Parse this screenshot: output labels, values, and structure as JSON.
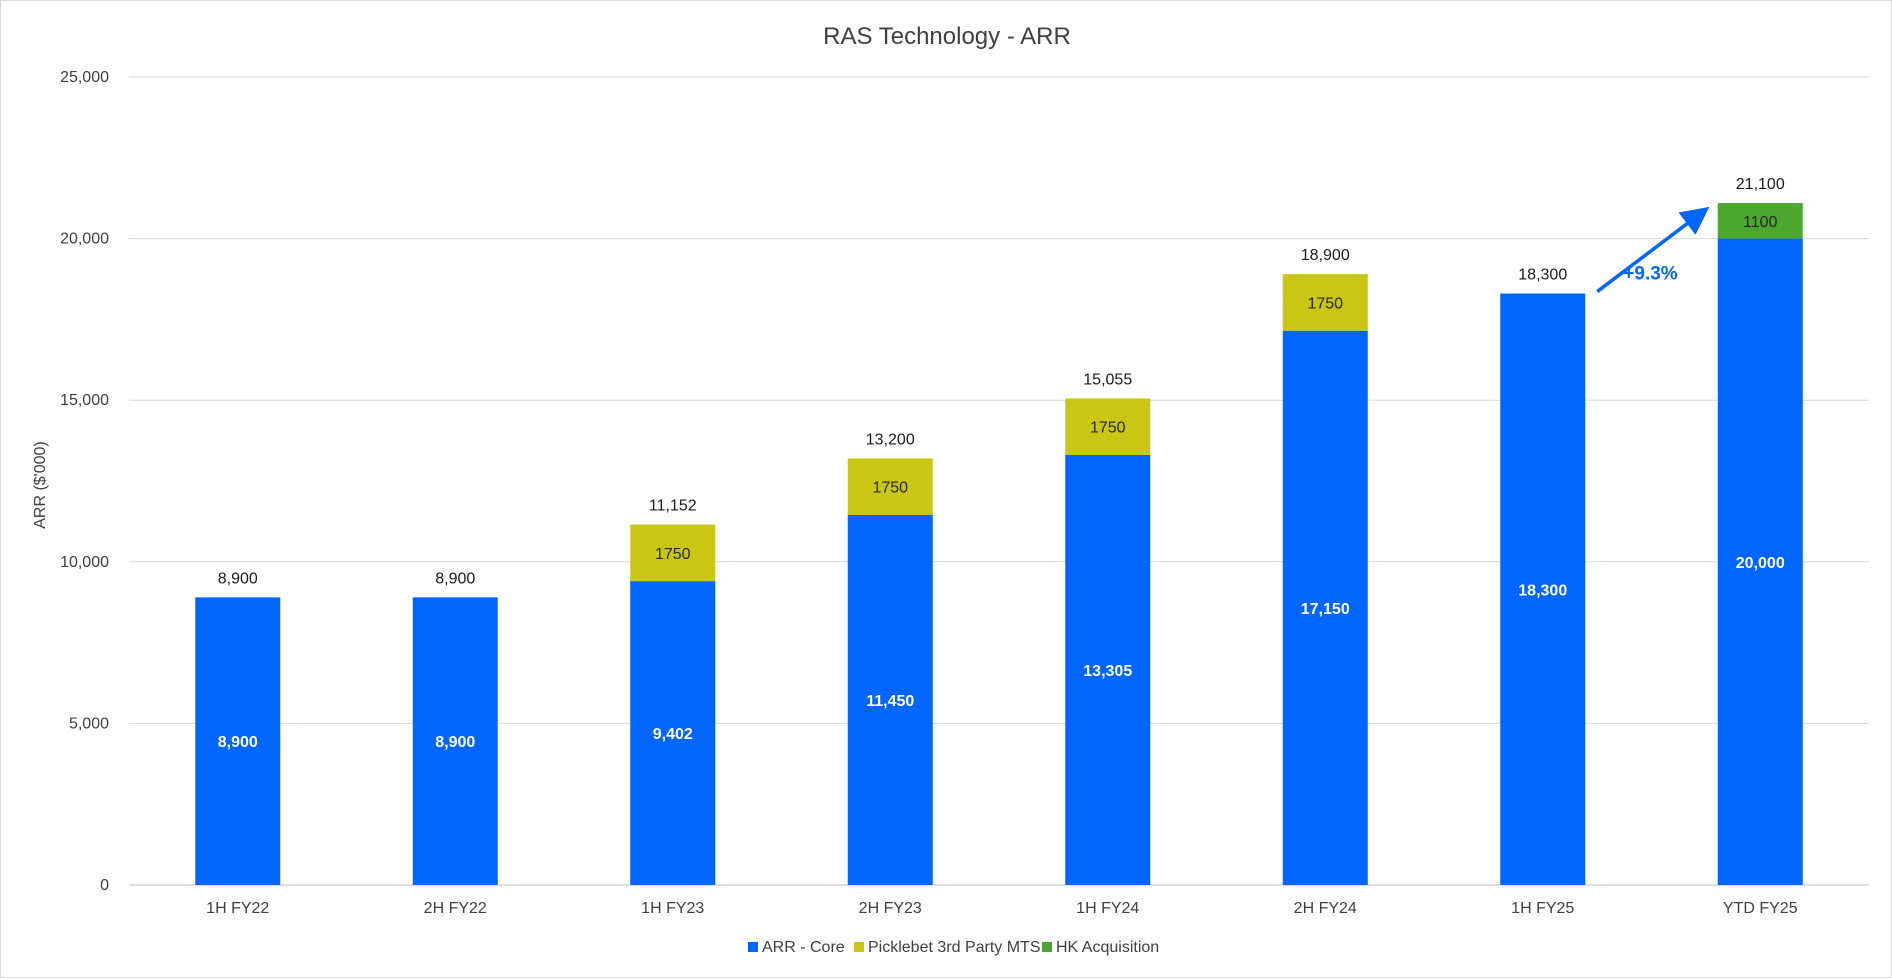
{
  "chart_data": {
    "type": "bar",
    "stacked": true,
    "title": "RAS Technology - ARR",
    "xlabel": "",
    "ylabel": "ARR ($'000)",
    "ylim": [
      0,
      25000
    ],
    "yticks": [
      0,
      5000,
      10000,
      15000,
      20000,
      25000
    ],
    "ytick_labels": [
      "0",
      "5,000",
      "10,000",
      "15,000",
      "20,000",
      "25,000"
    ],
    "grid": true,
    "legend_position": "bottom",
    "categories": [
      "1H FY22",
      "2H FY22",
      "1H FY23",
      "2H FY23",
      "1H FY24",
      "2H FY24",
      "1H FY25",
      "YTD FY25"
    ],
    "series": [
      {
        "name": "ARR - Core",
        "color": "#0066ff",
        "label_color": "#ffffff",
        "values": [
          8900,
          8900,
          9402,
          11450,
          13305,
          17150,
          18300,
          20000
        ],
        "labels": [
          "8,900",
          "8,900",
          "9,402",
          "11,450",
          "13,305",
          "17,150",
          "18,300",
          "20,000"
        ]
      },
      {
        "name": "Picklebet 3rd Party MTS",
        "color": "#c9c714",
        "label_color": "#262626",
        "values": [
          null,
          null,
          1750,
          1750,
          1750,
          1750,
          null,
          null
        ],
        "labels": [
          "",
          "",
          "1750",
          "1750",
          "1750",
          "1750",
          "",
          ""
        ]
      },
      {
        "name": "HK Acquisition",
        "color": "#4ea72e",
        "label_color": "#262626",
        "values": [
          null,
          null,
          null,
          null,
          null,
          null,
          null,
          1100
        ],
        "labels": [
          "",
          "",
          "",
          "",
          "",
          "",
          "",
          "1100"
        ]
      }
    ],
    "totals": [
      8900,
      8900,
      11152,
      13200,
      15055,
      18900,
      18300,
      21100
    ],
    "total_labels": [
      "8,900",
      "8,900",
      "11,152",
      "13,200",
      "15,055",
      "18,900",
      "18,300",
      "21,100"
    ],
    "annotations": [
      {
        "text": "+9.3%",
        "from_category": "1H FY25",
        "to_category": "YTD FY25",
        "color": "#0066ff"
      }
    ]
  }
}
